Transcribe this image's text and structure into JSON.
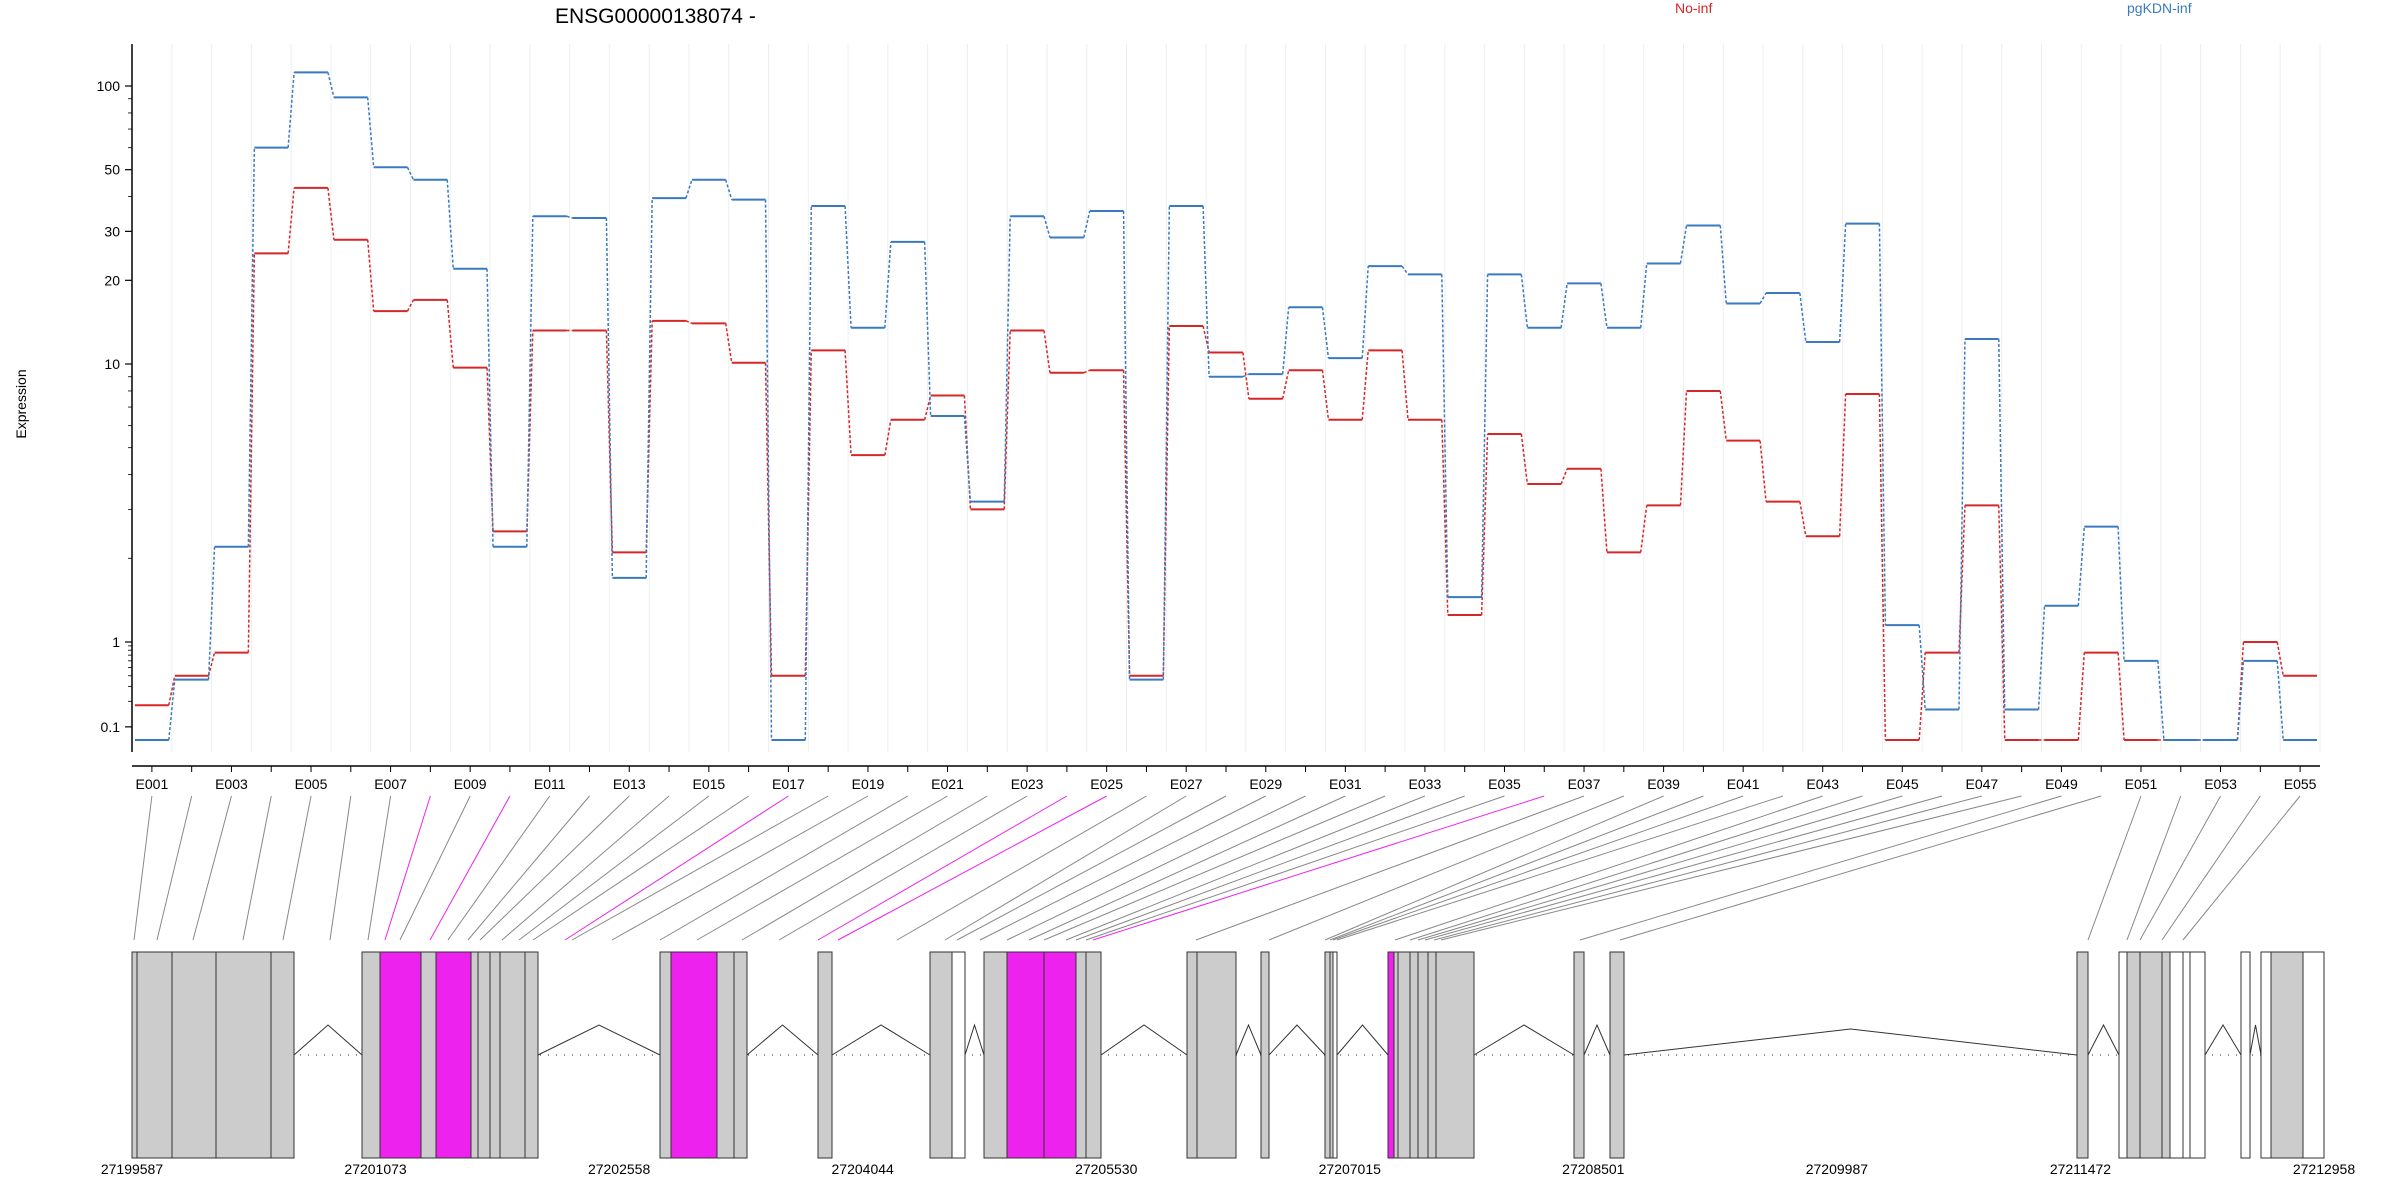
{
  "chart_data": {
    "type": "line",
    "title": "ENSG00000138074 -",
    "ylabel": "Expression",
    "yscale": "log",
    "ylim": [
      0.07,
      130
    ],
    "yticks": [
      0.1,
      1,
      10,
      20,
      30,
      50,
      100
    ],
    "ytick_labels": [
      "0.1",
      "1",
      "10",
      "20",
      "30",
      "50",
      "100"
    ],
    "grid": "vertical-light",
    "categories": [
      "E001",
      "E002",
      "E003",
      "E004",
      "E005",
      "E006",
      "E007",
      "E008",
      "E009",
      "E010",
      "E011",
      "E012",
      "E013",
      "E014",
      "E015",
      "E016",
      "E017",
      "E018",
      "E019",
      "E020",
      "E021",
      "E022",
      "E023",
      "E024",
      "E025",
      "E026",
      "E027",
      "E028",
      "E029",
      "E030",
      "E031",
      "E032",
      "E033",
      "E034",
      "E035",
      "E036",
      "E037",
      "E038",
      "E039",
      "E040",
      "E041",
      "E042",
      "E043",
      "E044",
      "E045",
      "E046",
      "E047",
      "E048",
      "E049",
      "E050",
      "E051",
      "E052",
      "E053",
      "E054",
      "E055"
    ],
    "xtick_labels": [
      "E001",
      "E003",
      "E005",
      "E007",
      "E009",
      "E011",
      "E013",
      "E015",
      "E017",
      "E019",
      "E021",
      "E023",
      "E025",
      "E027",
      "E029",
      "E031",
      "E033",
      "E035",
      "E037",
      "E039",
      "E041",
      "E043",
      "E045",
      "E047",
      "E049",
      "E051",
      "E053",
      "E055"
    ],
    "series": [
      {
        "name": "No-inf",
        "color": "#d62728",
        "values": [
          0.18,
          0.4,
          0.75,
          25,
          43,
          28,
          15.5,
          17,
          9.7,
          2.5,
          13.2,
          13.2,
          2.1,
          14.3,
          14,
          10.1,
          0.4,
          11.2,
          4.7,
          6.3,
          7.7,
          3,
          13.2,
          9.3,
          9.5,
          0.4,
          13.7,
          11,
          7.5,
          9.5,
          6.3,
          11.2,
          6.3,
          1.25,
          5.6,
          3.7,
          4.2,
          2.1,
          3.1,
          8,
          5.3,
          3.2,
          2.4,
          7.8,
          0.07,
          0.75,
          3.1,
          0.07,
          0.07,
          0.75,
          0.07,
          0.07,
          0.07,
          1,
          0.4
        ]
      },
      {
        "name": "pgKDN-inf",
        "color": "#3a7bbf",
        "values": [
          0.07,
          0.36,
          2.2,
          60,
          112,
          91,
          51,
          46,
          22,
          2.2,
          34,
          33.5,
          1.7,
          39.5,
          46,
          39,
          0.07,
          37,
          13.5,
          27.5,
          6.5,
          3.2,
          34,
          28.5,
          35.5,
          0.36,
          37,
          9,
          9.2,
          16,
          10.5,
          22.5,
          21,
          1.45,
          21,
          13.5,
          19.5,
          13.5,
          23,
          31.5,
          16.5,
          18,
          12,
          32,
          1.15,
          0.16,
          12.3,
          0.16,
          1.35,
          2.6,
          0.6,
          0.07,
          0.07,
          0.6,
          0.07
        ]
      }
    ],
    "legend": [
      "No-inf",
      "pgKDN-inf"
    ],
    "legend_placement": "top-right"
  },
  "gene_model": {
    "coordinate_labels": [
      "27199587",
      "27201073",
      "27202558",
      "27204044",
      "27205530",
      "27207015",
      "27208501",
      "27209987",
      "27211472",
      "27212958"
    ],
    "highlight_color": "#ee22ee",
    "exon_color": "#cccccc"
  }
}
